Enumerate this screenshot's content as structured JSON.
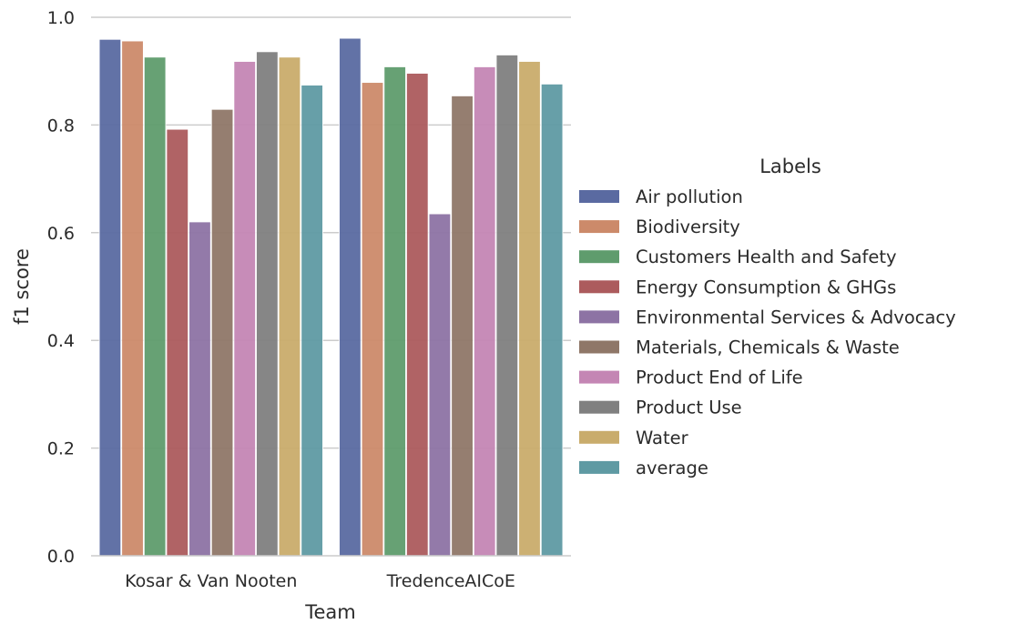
{
  "chart_data": {
    "type": "bar",
    "xlabel": "Team",
    "ylabel": "f1 score",
    "ylim": [
      0,
      1.0
    ],
    "yticks": [
      "0.0",
      "0.2",
      "0.4",
      "0.6",
      "0.8",
      "1.0"
    ],
    "grid": "horizontal",
    "legend_title": "Labels",
    "legend_placement": "right",
    "categories": [
      "Kosar & Van Nooten",
      "TredenceAICoE"
    ],
    "series": [
      {
        "name": "Air pollution",
        "color": "#5a6aa1",
        "values": [
          0.959,
          0.961
        ]
      },
      {
        "name": "Biodiversity",
        "color": "#cc8a6a",
        "values": [
          0.956,
          0.879
        ]
      },
      {
        "name": "Customers Health and Safety",
        "color": "#5f9c6d",
        "values": [
          0.926,
          0.908
        ]
      },
      {
        "name": "Energy Consumption & GHGs",
        "color": "#ac5b5d",
        "values": [
          0.792,
          0.896
        ]
      },
      {
        "name": "Environmental Services & Advocacy",
        "color": "#8d73a4",
        "values": [
          0.62,
          0.635
        ]
      },
      {
        "name": "Materials, Chemicals & Waste",
        "color": "#8f7768",
        "values": [
          0.829,
          0.854
        ]
      },
      {
        "name": "Product End of Life",
        "color": "#c486b4",
        "values": [
          0.918,
          0.908
        ]
      },
      {
        "name": "Product Use",
        "color": "#808080",
        "values": [
          0.936,
          0.93
        ]
      },
      {
        "name": "Water",
        "color": "#c9ac6c",
        "values": [
          0.926,
          0.918
        ]
      },
      {
        "name": "average",
        "color": "#5f9aa3",
        "values": [
          0.874,
          0.876
        ]
      }
    ]
  }
}
